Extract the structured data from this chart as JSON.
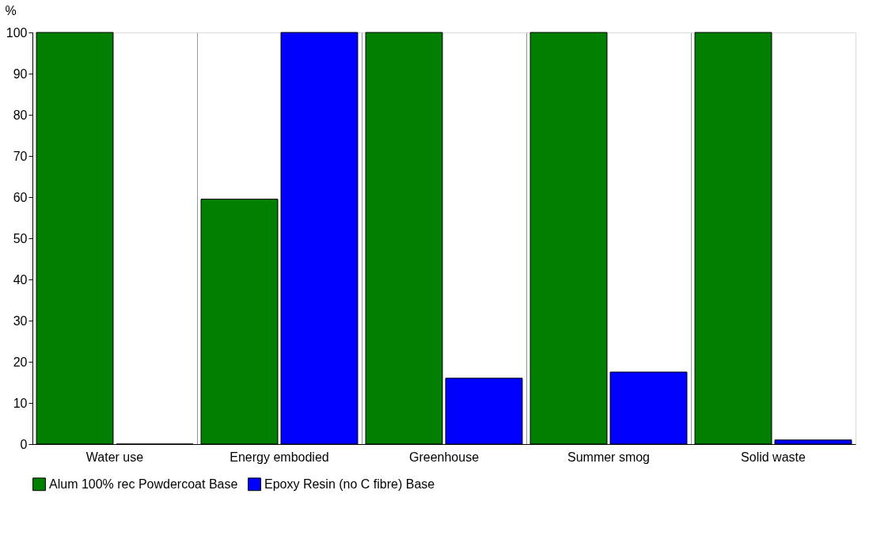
{
  "chart_data": {
    "type": "bar",
    "ylabel": "%",
    "categories": [
      "Water use",
      "Energy embodied",
      "Greenhouse",
      "Summer smog",
      "Solid waste"
    ],
    "series": [
      {
        "name": "Alum 100% rec Powdercoat Base",
        "color": "#007f00",
        "values": [
          100,
          59.5,
          100,
          100,
          100
        ]
      },
      {
        "name": "Epoxy Resin (no C fibre) Base",
        "color": "#0000ff",
        "values": [
          0,
          100,
          16,
          17.5,
          1
        ]
      }
    ],
    "ylim": [
      0,
      100
    ],
    "yticks": [
      0,
      10,
      20,
      30,
      40,
      50,
      60,
      70,
      80,
      90,
      100
    ],
    "grid": "x",
    "legend": "bottom left"
  }
}
